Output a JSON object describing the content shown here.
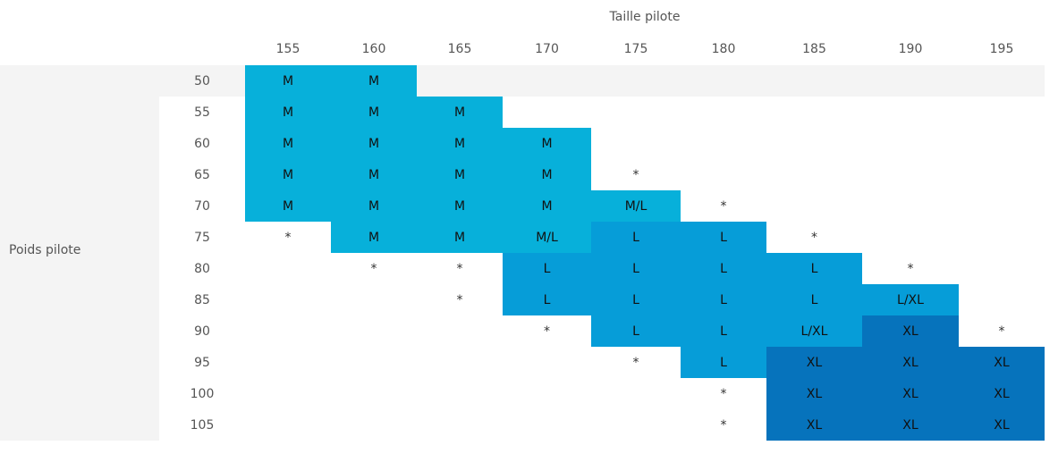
{
  "header": {
    "title": "Taille pilote",
    "columns": [
      "155",
      "160",
      "165",
      "170",
      "175",
      "180",
      "185",
      "190",
      "195"
    ]
  },
  "row_header": "Poids pilote",
  "colors": {
    "M": "#07b0da",
    "M/L": "#07b0da",
    "L": "#069dd8",
    "L/XL": "#069dd8",
    "XL": "#0673bc"
  },
  "rows": [
    {
      "weight": "50",
      "cells": [
        "M",
        "M",
        null,
        null,
        null,
        null,
        null,
        null,
        null
      ]
    },
    {
      "weight": "55",
      "cells": [
        "M",
        "M",
        "M",
        null,
        null,
        null,
        null,
        null,
        null
      ]
    },
    {
      "weight": "60",
      "cells": [
        "M",
        "M",
        "M",
        "M",
        null,
        null,
        null,
        null,
        null
      ]
    },
    {
      "weight": "65",
      "cells": [
        "M",
        "M",
        "M",
        "M",
        "*",
        null,
        null,
        null,
        null
      ]
    },
    {
      "weight": "70",
      "cells": [
        "M",
        "M",
        "M",
        "M",
        "M/L",
        "*",
        null,
        null,
        null
      ]
    },
    {
      "weight": "75",
      "cells": [
        "*",
        "M",
        "M",
        "M/L",
        "L",
        "L",
        "*",
        null,
        null
      ]
    },
    {
      "weight": "80",
      "cells": [
        null,
        "*",
        "*",
        "L",
        "L",
        "L",
        "L",
        "*",
        null
      ]
    },
    {
      "weight": "85",
      "cells": [
        null,
        null,
        "*",
        "L",
        "L",
        "L",
        "L",
        "L/XL",
        null
      ]
    },
    {
      "weight": "90",
      "cells": [
        null,
        null,
        null,
        "*",
        "L",
        "L",
        "L/XL",
        "XL",
        "*"
      ]
    },
    {
      "weight": "95",
      "cells": [
        null,
        null,
        null,
        null,
        "*",
        "L",
        "XL",
        "XL",
        "XL"
      ]
    },
    {
      "weight": "100",
      "cells": [
        null,
        null,
        null,
        null,
        null,
        "*",
        "XL",
        "XL",
        "XL"
      ]
    },
    {
      "weight": "105",
      "cells": [
        null,
        null,
        null,
        null,
        null,
        "*",
        "XL",
        "XL",
        "XL"
      ]
    }
  ]
}
